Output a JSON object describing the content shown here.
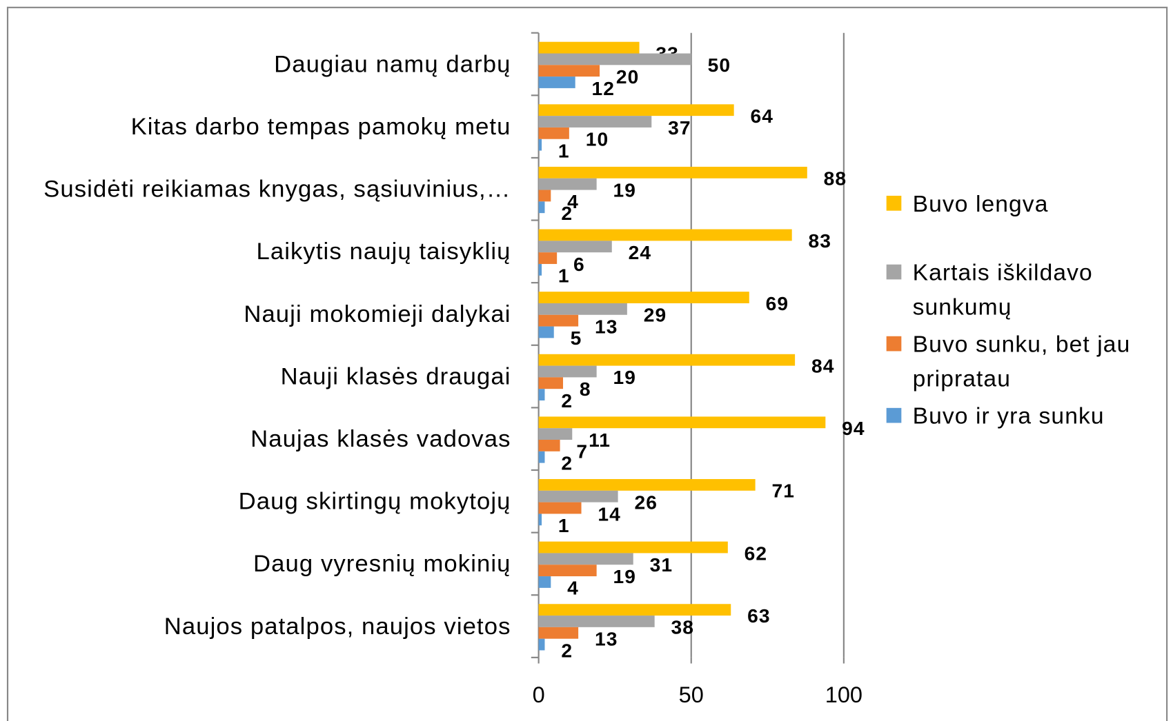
{
  "chart_data": {
    "type": "bar",
    "orientation": "horizontal",
    "categories": [
      "Daugiau namų darbų",
      "Kitas darbo tempas pamokų metu",
      "Susidėti reikiamas knygas, sąsiuvinius,…",
      "Laikytis naujų taisyklių",
      "Nauji mokomieji dalykai",
      "Nauji klasės draugai",
      "Naujas klasės vadovas",
      "Daug skirtingų mokytojų",
      "Daug vyresnių mokinių",
      "Naujos patalpos, naujos vietos"
    ],
    "series": [
      {
        "name": "Buvo lengva",
        "color": "#ffc000",
        "values": [
          33,
          64,
          88,
          83,
          69,
          84,
          94,
          71,
          62,
          63
        ]
      },
      {
        "name": "Kartais iškildavo sunkumų",
        "color": "#a5a5a5",
        "values": [
          50,
          37,
          19,
          24,
          29,
          19,
          11,
          26,
          31,
          38
        ]
      },
      {
        "name": "Buvo sunku, bet jau pripratau",
        "color": "#ed7d31",
        "values": [
          20,
          10,
          4,
          6,
          13,
          8,
          7,
          14,
          19,
          13
        ]
      },
      {
        "name": "Buvo ir yra sunku",
        "color": "#5b9bd5",
        "values": [
          12,
          1,
          2,
          1,
          5,
          2,
          2,
          1,
          4,
          2
        ]
      }
    ],
    "xlim": [
      0,
      100
    ],
    "xticks": [
      0,
      50,
      100
    ],
    "grid": true,
    "legend": "right"
  }
}
